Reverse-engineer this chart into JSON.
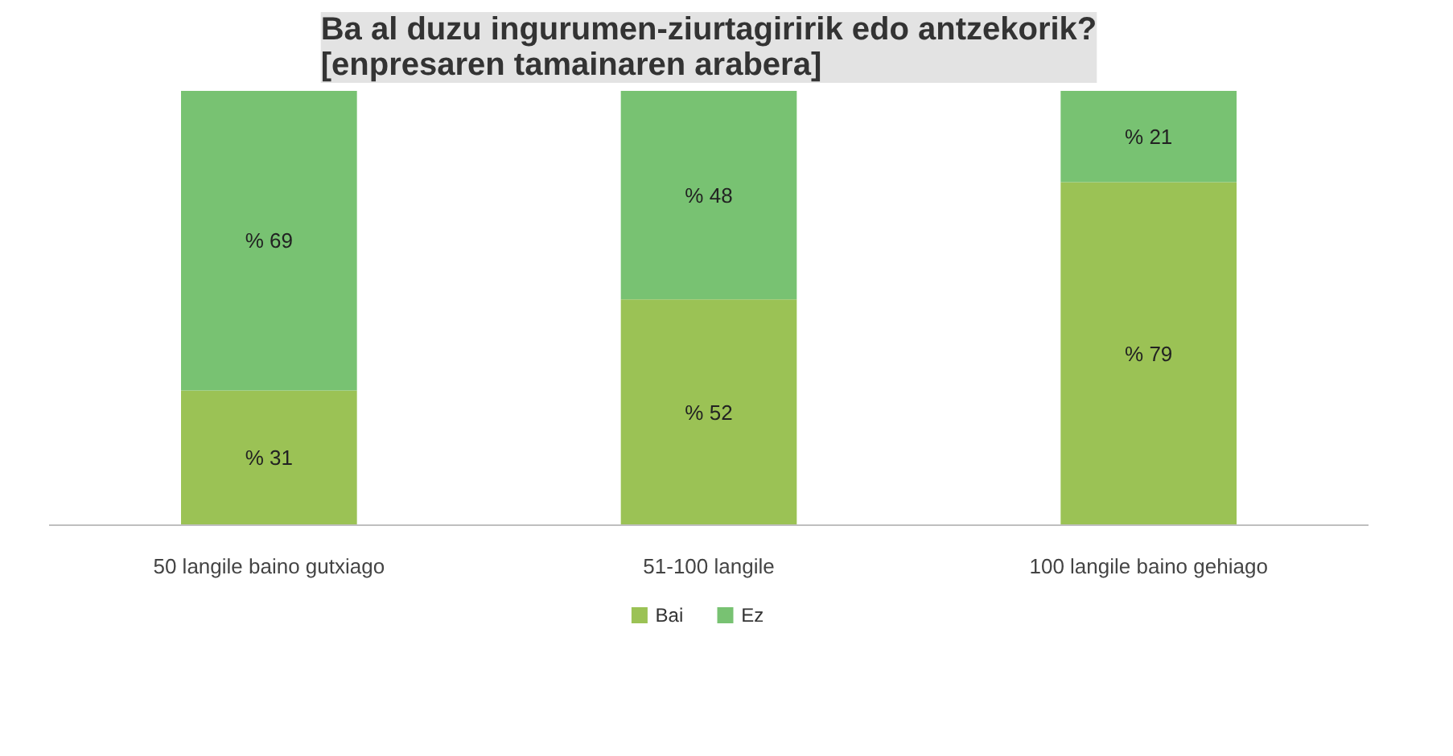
{
  "chart_data": {
    "type": "bar",
    "stacked": true,
    "title": "Ba al duzu ingurumen-ziurtagiririk edo antzekorik?\n[enpresaren tamainaren arabera]",
    "categories": [
      "50 langile baino gutxiago",
      "51-100 langile",
      "100 langile baino gehiago"
    ],
    "series": [
      {
        "name": "Bai",
        "color": "#9bc255",
        "values": [
          31,
          52,
          79
        ],
        "value_labels": [
          "% 31",
          "% 52",
          "% 79"
        ]
      },
      {
        "name": "Ez",
        "color": "#78c272",
        "values": [
          69,
          48,
          21
        ],
        "value_labels": [
          "% 69",
          "% 48",
          "% 21"
        ]
      }
    ],
    "legend": "bottom"
  }
}
